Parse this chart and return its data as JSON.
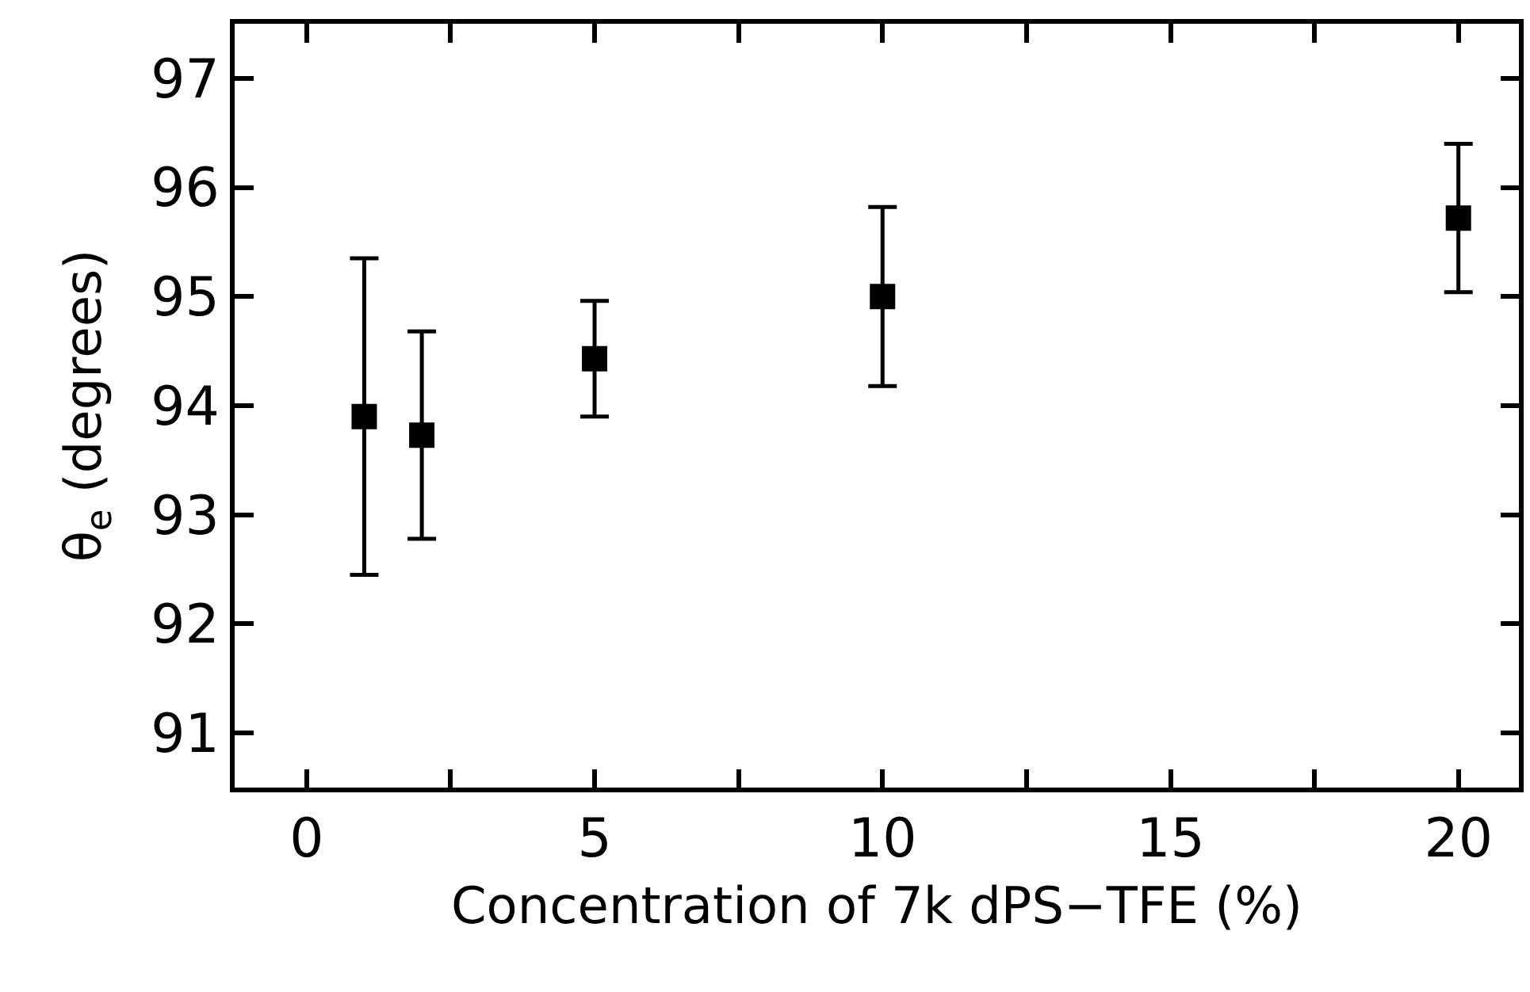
{
  "chart_data": {
    "type": "scatter",
    "xlabel": "Concentration of 7k dPS−TFE (%)",
    "ylabel": "θ$_{e}$ (degrees)",
    "x": [
      1,
      2,
      5,
      10,
      20
    ],
    "series": [
      {
        "color": "#000000",
        "values": [
          93.9,
          93.73,
          94.43,
          95.0,
          95.72
        ],
        "errors": [
          1.45,
          0.95,
          0.53,
          0.82,
          0.68
        ]
      }
    ],
    "marker": "square",
    "xlim": [
      -1.25,
      21.05
    ],
    "ylim": [
      90.5,
      97.5
    ],
    "xticks": [
      0,
      {
        "value": 2.5,
        "label": null
      },
      5,
      {
        "value": 7.5,
        "label": null
      },
      10,
      {
        "value": 12.5,
        "label": null
      },
      15,
      {
        "value": 17.5,
        "label": null
      },
      20
    ],
    "yticks": [
      91,
      92,
      93,
      94,
      95,
      96,
      97
    ],
    "legend": false
  }
}
